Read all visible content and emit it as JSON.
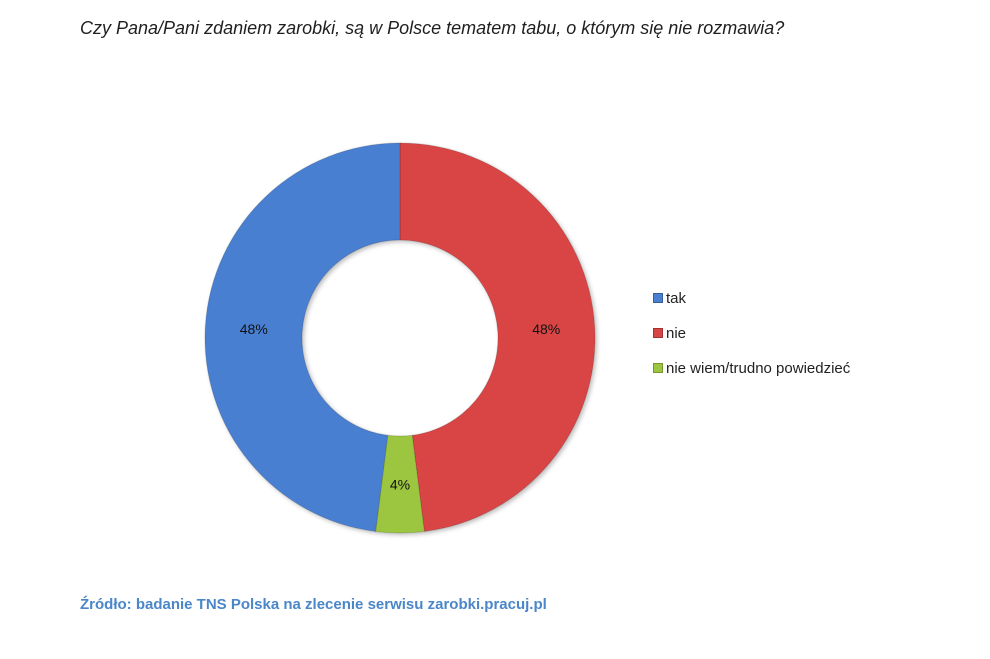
{
  "title": "Czy Pana/Pani zdaniem zarobki, są w Polsce tematem tabu, o którym się nie rozmawia?",
  "source": "Źródło: badanie TNS Polska na zlecenie serwisu zarobki.pracuj.pl",
  "chart_data": {
    "type": "pie",
    "variant": "doughnut",
    "title": "Czy Pana/Pani zdaniem zarobki, są w Polsce tematem tabu, o którym się nie rozmawia?",
    "legend_position": "right",
    "slices": [
      {
        "label": "tak",
        "value": 48,
        "display": "48%",
        "color": "#4a7fd1"
      },
      {
        "label": "nie",
        "value": 48,
        "display": "48%",
        "color": "#d94545"
      },
      {
        "label": "nie wiem/trudno powiedzieć",
        "value": 4,
        "display": "4%",
        "color": "#9dc640"
      }
    ]
  }
}
